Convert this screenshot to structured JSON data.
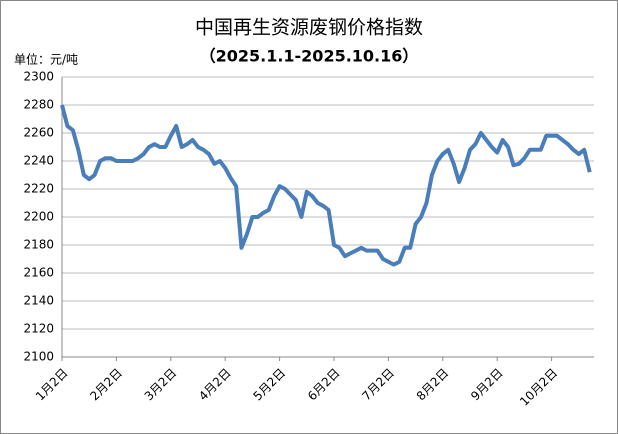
{
  "chart_data": {
    "type": "line",
    "title": "中国再生资源废钢价格指数",
    "subtitle": "（2025.1.1-2025.10.16）",
    "y_label": "单位：元/吨",
    "categories": [
      "1月2日",
      null,
      null,
      null,
      null,
      null,
      null,
      null,
      null,
      null,
      "2月2日",
      null,
      null,
      null,
      null,
      null,
      null,
      null,
      null,
      null,
      "3月2日",
      null,
      null,
      null,
      null,
      null,
      null,
      null,
      null,
      null,
      "4月2日",
      null,
      null,
      null,
      null,
      null,
      null,
      null,
      null,
      null,
      "5月2日",
      null,
      null,
      null,
      null,
      null,
      null,
      null,
      null,
      null,
      "6月2日",
      null,
      null,
      null,
      null,
      null,
      null,
      null,
      null,
      null,
      "7月2日",
      null,
      null,
      null,
      null,
      null,
      null,
      null,
      null,
      null,
      "8月2日",
      null,
      null,
      null,
      null,
      null,
      null,
      null,
      null,
      null,
      "9月2日",
      null,
      null,
      null,
      null,
      null,
      null,
      null,
      null,
      null,
      "10月2日",
      null,
      null,
      null,
      null,
      null,
      null,
      null
    ],
    "series": [
      {
        "color": "#4a7ebb",
        "values": [
          2280,
          2265,
          2262,
          2248,
          2230,
          2227,
          2230,
          2240,
          2242,
          2242,
          2240,
          2240,
          2240,
          2240,
          2242,
          2245,
          2250,
          2252,
          2250,
          2250,
          2258,
          2265,
          2250,
          2252,
          2255,
          2250,
          2248,
          2245,
          2238,
          2240,
          2235,
          2228,
          2222,
          2178,
          2188,
          2200,
          2200,
          2203,
          2205,
          2215,
          2222,
          2220,
          2216,
          2212,
          2200,
          2218,
          2215,
          2210,
          2208,
          2205,
          2180,
          2178,
          2172,
          2174,
          2176,
          2178,
          2176,
          2176,
          2176,
          2170,
          2168,
          2166,
          2168,
          2178,
          2178,
          2195,
          2200,
          2210,
          2230,
          2240,
          2245,
          2248,
          2238,
          2225,
          2235,
          2248,
          2252,
          2260,
          2255,
          2250,
          2246,
          2255,
          2250,
          2237,
          2238,
          2242,
          2248,
          2248,
          2248,
          2258,
          2258,
          2258,
          2255,
          2252,
          2248,
          2245,
          2248,
          2232
        ]
      }
    ],
    "ylim": [
      2100,
      2300
    ],
    "yticks": [
      2100,
      2120,
      2140,
      2160,
      2180,
      2200,
      2220,
      2240,
      2260,
      2280,
      2300
    ],
    "grid": true
  }
}
